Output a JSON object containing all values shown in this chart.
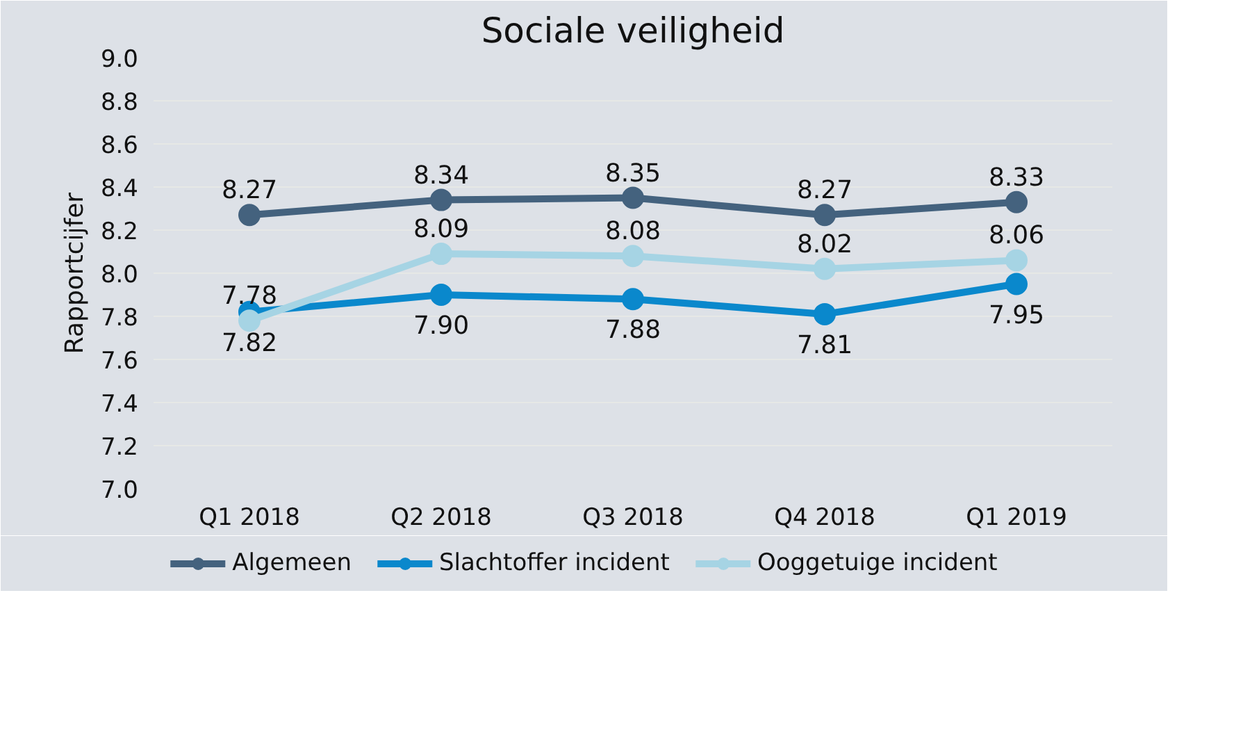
{
  "chart_data": {
    "type": "line",
    "title": "Sociale veiligheid",
    "ylabel": "Rapportcijfer",
    "categories": [
      "Q1 2018",
      "Q2 2018",
      "Q3 2018",
      "Q4 2018",
      "Q1 2019"
    ],
    "series": [
      {
        "name": "Algemeen",
        "color": "#44627e",
        "values": [
          8.27,
          8.34,
          8.35,
          8.27,
          8.33
        ],
        "value_labels": [
          "8.27",
          "8.34",
          "8.35",
          "8.27",
          "8.33"
        ]
      },
      {
        "name": "Slachtoffer incident",
        "color": "#0a88cc",
        "values": [
          7.82,
          7.9,
          7.88,
          7.81,
          7.95
        ],
        "value_labels": [
          "7.82",
          "7.90",
          "7.88",
          "7.81",
          "7.95"
        ]
      },
      {
        "name": "Ooggetuige incident",
        "color": "#a6d4e4",
        "values": [
          7.78,
          8.09,
          8.08,
          8.02,
          8.06
        ],
        "value_labels": [
          "7.78",
          "8.09",
          "8.08",
          "8.02",
          "8.06"
        ]
      }
    ],
    "ylim": [
      7.0,
      9.0
    ],
    "yticks": [
      {
        "value": 7.0,
        "label": "7.0"
      },
      {
        "value": 7.2,
        "label": "7.2"
      },
      {
        "value": 7.4,
        "label": "7.4"
      },
      {
        "value": 7.6,
        "label": "7.6"
      },
      {
        "value": 7.8,
        "label": "7.8"
      },
      {
        "value": 8.0,
        "label": "8.0"
      },
      {
        "value": 8.2,
        "label": "8.2"
      },
      {
        "value": 8.4,
        "label": "8.4"
      },
      {
        "value": 8.6,
        "label": "8.6"
      },
      {
        "value": 8.8,
        "label": "8.8"
      },
      {
        "value": 9.0,
        "label": "9.0"
      }
    ],
    "grid": "y",
    "legend": "bottom",
    "marker": "circle",
    "line_style": "solid"
  }
}
